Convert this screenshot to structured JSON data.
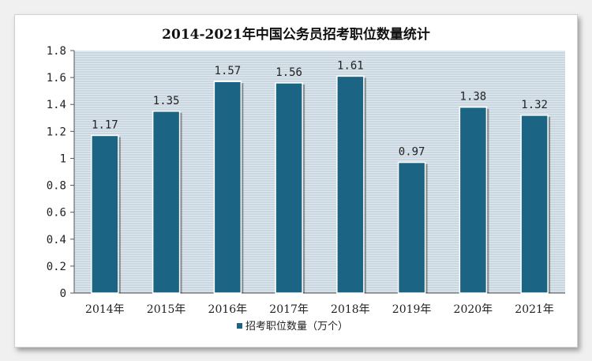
{
  "chart_data": {
    "type": "bar",
    "title": "2014-2021年中国公务员招考职位数量统计",
    "categories": [
      "2014年",
      "2015年",
      "2016年",
      "2017年",
      "2018年",
      "2019年",
      "2020年",
      "2021年"
    ],
    "series": [
      {
        "name": "招考职位数量（万个）",
        "values": [
          1.17,
          1.35,
          1.57,
          1.56,
          1.61,
          0.97,
          1.38,
          1.32
        ],
        "data_labels": [
          "1.17",
          "1.35",
          "1.57",
          "1.56",
          "1.61",
          "0.97",
          "1.38",
          "1.32"
        ],
        "color": "#1c6484"
      }
    ],
    "ylim": [
      0,
      1.8
    ],
    "yticks": [
      "0",
      "0.2",
      "0.4",
      "0.6",
      "0.8",
      "1",
      "1.2",
      "1.4",
      "1.6",
      "1.8"
    ],
    "grid": true,
    "legend_position": "bottom"
  },
  "colors": {
    "plot_background": "#dde8ef",
    "gridline": "#8fa3b2",
    "bar": "#1c6484"
  }
}
